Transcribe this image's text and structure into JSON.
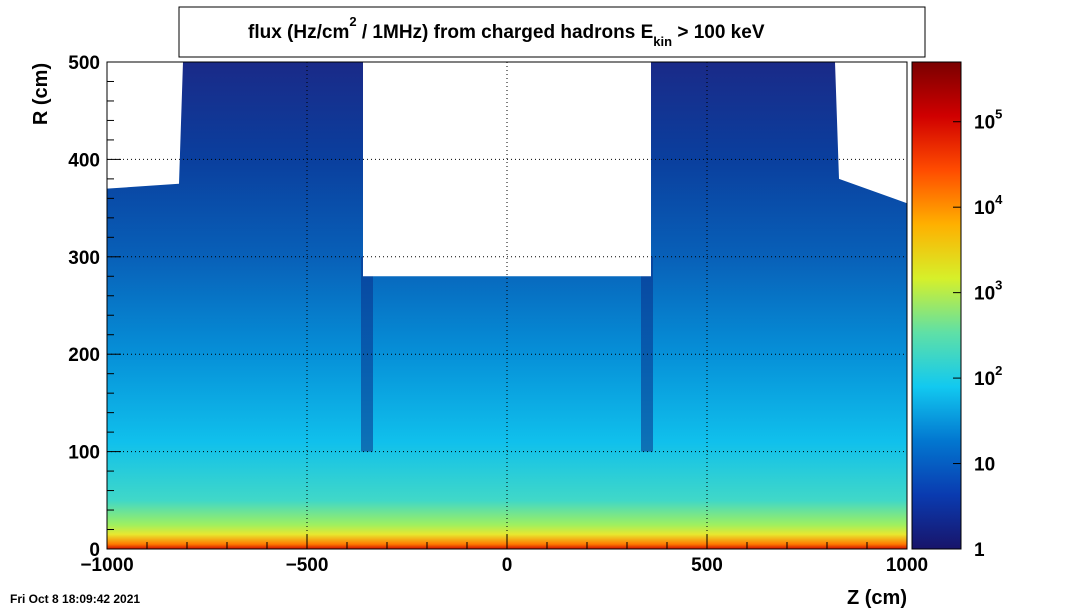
{
  "chart_data": {
    "type": "heatmap",
    "title": {
      "lead": "flux (Hz/cm",
      "sup": "2",
      "tail": " / 1MHz) from   charged hadrons  E",
      "sub": "kin",
      "end": " > 100 keV"
    },
    "xlabel": "Z (cm)",
    "ylabel": "R (cm)",
    "xlim": [
      -1000,
      1000
    ],
    "ylim": [
      0,
      500
    ],
    "x_ticks": [
      {
        "value": -1000,
        "label": "−1000"
      },
      {
        "value": -500,
        "label": "−500"
      },
      {
        "value": 0,
        "label": "0"
      },
      {
        "value": 500,
        "label": "500"
      },
      {
        "value": 1000,
        "label": "1000"
      }
    ],
    "y_ticks": [
      {
        "value": 0,
        "label": "0"
      },
      {
        "value": 100,
        "label": "100"
      },
      {
        "value": 200,
        "label": "200"
      },
      {
        "value": 300,
        "label": "300"
      },
      {
        "value": 400,
        "label": "400"
      },
      {
        "value": 500,
        "label": "500"
      }
    ],
    "colorbar": {
      "scale": "log",
      "zlim": [
        1,
        500000
      ],
      "labels": [
        {
          "value": 1,
          "base": "1",
          "exp": ""
        },
        {
          "value": 10,
          "base": "10",
          "exp": ""
        },
        {
          "value": 100,
          "base": "10",
          "exp": "2"
        },
        {
          "value": 1000,
          "base": "10",
          "exp": "3"
        },
        {
          "value": 10000,
          "base": "10",
          "exp": "4"
        },
        {
          "value": 100000,
          "base": "10",
          "exp": "5"
        }
      ],
      "colors": [
        "#18146a",
        "#0a3bb0",
        "#0277d0",
        "#12c9f0",
        "#5fe0a6",
        "#d6f02a",
        "#ffb000",
        "#ff4c00",
        "#d00000",
        "#7a0000"
      ]
    },
    "grid": true,
    "profile": {
      "note_units": "R in cm, Z in cm",
      "outer_edge_R_by_Z": [
        [
          -1000,
          370
        ],
        [
          -820,
          375
        ],
        [
          -810,
          500
        ],
        [
          -360,
          500
        ],
        [
          -360,
          280
        ],
        [
          360,
          280
        ],
        [
          360,
          500
        ],
        [
          820,
          500
        ],
        [
          830,
          380
        ],
        [
          1000,
          355
        ]
      ],
      "dark_bands_Z": [
        -350,
        350
      ]
    },
    "timestamp": "Fri Oct  8 18:09:42 2021"
  }
}
